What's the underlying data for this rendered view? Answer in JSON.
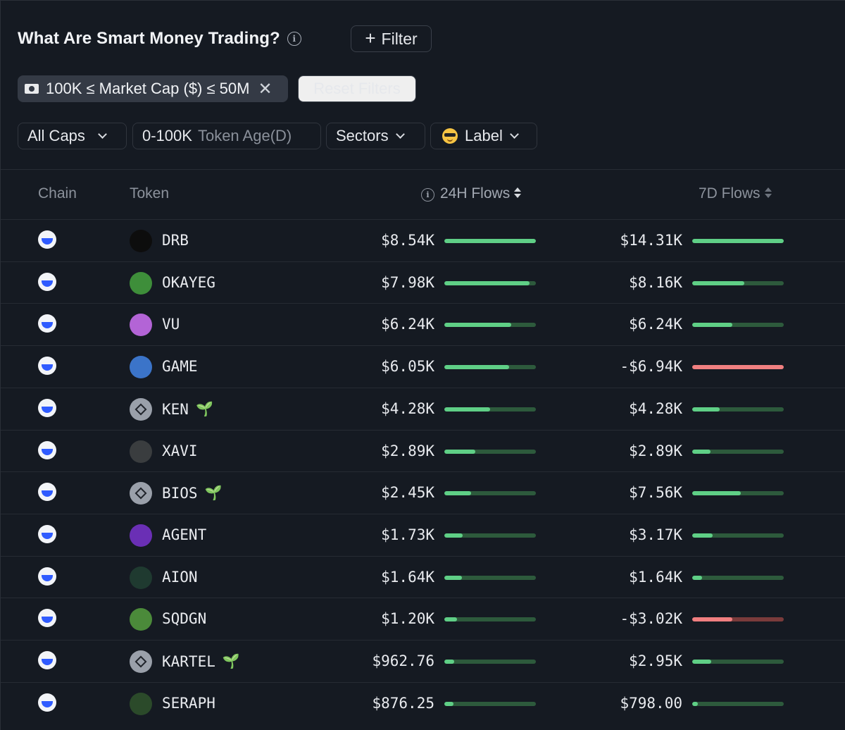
{
  "header": {
    "title": "What Are Smart Money Trading?",
    "filter_label": "Filter"
  },
  "active_filter": {
    "label": "100K ≤ Market Cap ($) ≤ 50M"
  },
  "reset_label": "Reset Filters",
  "dropdowns": {
    "caps": "All Caps",
    "age_value": "0-100K",
    "age_label": "Token Age(D)",
    "sectors": "Sectors",
    "label": "Label"
  },
  "columns": {
    "chain": "Chain",
    "token": "Token",
    "flows24": "24H Flows",
    "flows7": "7D Flows"
  },
  "colors": {
    "positive": "#5fcf86",
    "negative": "#f07f80",
    "background": "#151a22"
  },
  "rows": [
    {
      "symbol": "DRB",
      "flow24": "$8.54K",
      "ratio24": 1.0,
      "flow7": "$14.31K",
      "ratio7": 1.0,
      "neg7": false,
      "sprout": false,
      "icon_color": "#0d0d0d"
    },
    {
      "symbol": "OKAYEG",
      "flow24": "$7.98K",
      "ratio24": 0.93,
      "flow7": "$8.16K",
      "ratio7": 0.57,
      "neg7": false,
      "sprout": false,
      "icon_color": "#3e8e3a"
    },
    {
      "symbol": "VU",
      "flow24": "$6.24K",
      "ratio24": 0.73,
      "flow7": "$6.24K",
      "ratio7": 0.44,
      "neg7": false,
      "sprout": false,
      "icon_color": "#b364d6"
    },
    {
      "symbol": "GAME",
      "flow24": "$6.05K",
      "ratio24": 0.71,
      "flow7": "-$6.94K",
      "ratio7": 1.0,
      "neg7": true,
      "sprout": false,
      "icon_color": "#3b74c9"
    },
    {
      "symbol": "KEN",
      "flow24": "$4.28K",
      "ratio24": 0.5,
      "flow7": "$4.28K",
      "ratio7": 0.3,
      "neg7": false,
      "sprout": true,
      "icon_color": "#9aa0aa"
    },
    {
      "symbol": "XAVI",
      "flow24": "$2.89K",
      "ratio24": 0.34,
      "flow7": "$2.89K",
      "ratio7": 0.2,
      "neg7": false,
      "sprout": false,
      "icon_color": "#3a3d3f"
    },
    {
      "symbol": "BIOS",
      "flow24": "$2.45K",
      "ratio24": 0.29,
      "flow7": "$7.56K",
      "ratio7": 0.53,
      "neg7": false,
      "sprout": true,
      "icon_color": "#9aa0aa"
    },
    {
      "symbol": "AGENT",
      "flow24": "$1.73K",
      "ratio24": 0.2,
      "flow7": "$3.17K",
      "ratio7": 0.22,
      "neg7": false,
      "sprout": false,
      "icon_color": "#6a2fb5"
    },
    {
      "symbol": "AION",
      "flow24": "$1.64K",
      "ratio24": 0.19,
      "flow7": "$1.64K",
      "ratio7": 0.11,
      "neg7": false,
      "sprout": false,
      "icon_color": "#1f3a30"
    },
    {
      "symbol": "SQDGN",
      "flow24": "$1.20K",
      "ratio24": 0.14,
      "flow7": "-$3.02K",
      "ratio7": 0.44,
      "neg7": true,
      "sprout": false,
      "icon_color": "#4b8a3a"
    },
    {
      "symbol": "KARTEL",
      "flow24": "$962.76",
      "ratio24": 0.11,
      "flow7": "$2.95K",
      "ratio7": 0.21,
      "neg7": false,
      "sprout": true,
      "icon_color": "#9aa0aa"
    },
    {
      "symbol": "SERAPH",
      "flow24": "$876.25",
      "ratio24": 0.1,
      "flow7": "$798.00",
      "ratio7": 0.06,
      "neg7": false,
      "sprout": false,
      "icon_color": "#2b4a2a"
    }
  ]
}
